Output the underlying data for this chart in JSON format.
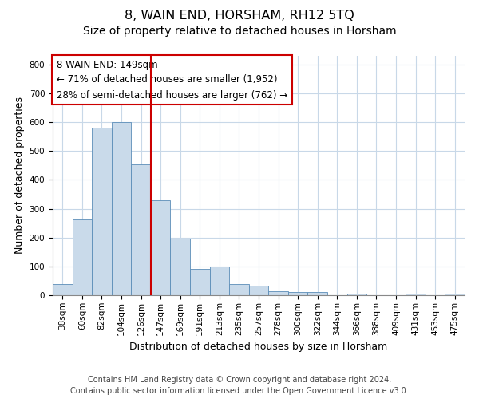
{
  "title": "8, WAIN END, HORSHAM, RH12 5TQ",
  "subtitle": "Size of property relative to detached houses in Horsham",
  "xlabel": "Distribution of detached houses by size in Horsham",
  "ylabel": "Number of detached properties",
  "categories": [
    "38sqm",
    "60sqm",
    "82sqm",
    "104sqm",
    "126sqm",
    "147sqm",
    "169sqm",
    "191sqm",
    "213sqm",
    "235sqm",
    "257sqm",
    "278sqm",
    "300sqm",
    "322sqm",
    "344sqm",
    "366sqm",
    "388sqm",
    "409sqm",
    "431sqm",
    "453sqm",
    "475sqm"
  ],
  "values": [
    38,
    263,
    580,
    600,
    455,
    330,
    197,
    90,
    100,
    38,
    32,
    15,
    12,
    10,
    0,
    5,
    0,
    0,
    5,
    0,
    5
  ],
  "bar_color": "#c9daea",
  "bar_edge_color": "#5b8db8",
  "vline_index": 5,
  "vline_color": "#cc0000",
  "annotation_lines": [
    "8 WAIN END: 149sqm",
    "← 71% of detached houses are smaller (1,952)",
    "28% of semi-detached houses are larger (762) →"
  ],
  "annotation_box_color": "#cc0000",
  "ylim": [
    0,
    830
  ],
  "yticks": [
    0,
    100,
    200,
    300,
    400,
    500,
    600,
    700,
    800
  ],
  "footer_line1": "Contains HM Land Registry data © Crown copyright and database right 2024.",
  "footer_line2": "Contains public sector information licensed under the Open Government Licence v3.0.",
  "title_fontsize": 11.5,
  "subtitle_fontsize": 10,
  "axis_label_fontsize": 9,
  "tick_fontsize": 7.5,
  "annotation_fontsize": 8.5,
  "footer_fontsize": 7,
  "background_color": "#ffffff",
  "plot_bg_color": "#ffffff",
  "grid_color": "#c8d8e8"
}
